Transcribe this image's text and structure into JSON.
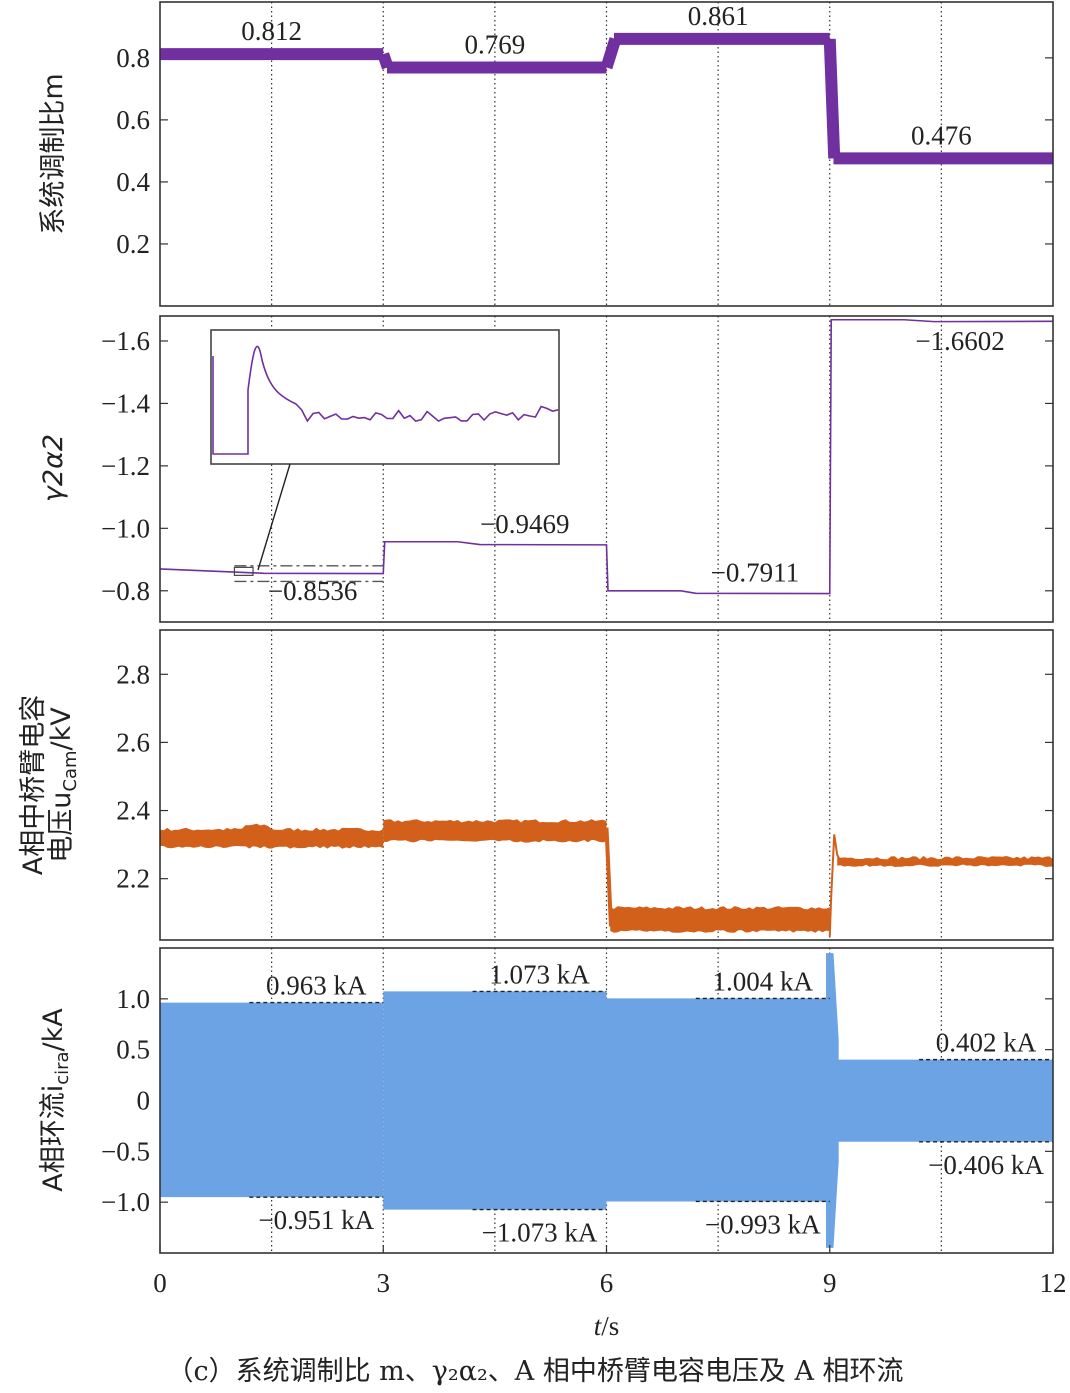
{
  "caption": "（c）系统调制比 m、γ₂α₂、A 相中桥臂电容电压及 A 相环流",
  "chart_data": [
    {
      "type": "line",
      "ylabel": "系统调制比m",
      "xlim": [
        0,
        12
      ],
      "ylim": [
        0.0,
        0.98
      ],
      "yticks": [
        "0.2",
        "0.4",
        "0.6",
        "0.8"
      ],
      "grid": "vertical-dotted",
      "color": "#7030a0",
      "series": [
        {
          "x": [
            0,
            3,
            3.1,
            6,
            6.1,
            9,
            9.05,
            12
          ],
          "values": [
            0.812,
            0.812,
            0.769,
            0.769,
            0.861,
            0.861,
            0.476,
            0.476
          ]
        }
      ],
      "labels": [
        "0.812",
        "0.769",
        "0.861",
        "0.476"
      ]
    },
    {
      "type": "line",
      "ylabel": "γ2α2",
      "xlim": [
        0,
        12
      ],
      "ylim": [
        -0.7,
        -1.68
      ],
      "yticks": [
        "−0.8",
        "−1.0",
        "−1.2",
        "−1.4",
        "−1.6"
      ],
      "grid": "vertical-dotted",
      "color": "#7030a0",
      "series": [
        {
          "x": [
            0,
            0.2,
            1,
            1.4,
            3,
            3.02,
            4,
            4.3,
            6,
            6.02,
            7,
            7.2,
            9,
            9.02,
            10,
            10.4,
            12
          ],
          "values": [
            -0.87,
            -0.868,
            -0.86,
            -0.856,
            -0.855,
            -0.957,
            -0.957,
            -0.948,
            -0.947,
            -0.8,
            -0.8,
            -0.792,
            -0.791,
            -1.668,
            -1.668,
            -1.662,
            -1.663
          ]
        }
      ],
      "labels": [
        "−0.8536",
        "−0.9469",
        "−0.7911",
        "−1.6602"
      ]
    },
    {
      "type": "area",
      "ylabel_line1": "A相中桥臂电容",
      "ylabel_line2": "电压u",
      "ylabel_sub": "Cam",
      "ylabel_unit": "/kV",
      "xlim": [
        0,
        12
      ],
      "ylim": [
        2.02,
        2.93
      ],
      "yticks": [
        "2.2",
        "2.4",
        "2.6",
        "2.8"
      ],
      "grid": "vertical-dotted",
      "color": "#d2601a",
      "series": [
        {
          "x": [
            0,
            3,
            3,
            6,
            6,
            9,
            9.1,
            12
          ],
          "upper": [
            2.35,
            2.35,
            2.37,
            2.37,
            2.11,
            2.11,
            2.26,
            2.26
          ],
          "lower": [
            2.29,
            2.29,
            2.31,
            2.31,
            2.04,
            2.05,
            2.24,
            2.24
          ]
        }
      ]
    },
    {
      "type": "area",
      "ylabel_main": "A相环流i",
      "ylabel_sub": "cira",
      "ylabel_unit": "/kA",
      "xlim": [
        0,
        12
      ],
      "ylim": [
        -1.5,
        1.5
      ],
      "yticks": [
        "−1.0",
        "−0.5",
        "0",
        "0.5",
        "1.0"
      ],
      "grid": "vertical-dotted",
      "color": "#6ba3e4",
      "series": [
        {
          "x": [
            0,
            3,
            3,
            6,
            6,
            9,
            9.1,
            12
          ],
          "upper": [
            0.963,
            0.963,
            1.073,
            1.073,
            1.004,
            1.004,
            0.402,
            0.402
          ],
          "lower": [
            -0.951,
            -0.951,
            -1.073,
            -1.073,
            -0.993,
            -0.993,
            -0.406,
            -0.406
          ]
        }
      ],
      "labels_upper": [
        "0.963 kA",
        "1.073 kA",
        "1.004 kA",
        "0.402 kA"
      ],
      "labels_lower": [
        "−0.951 kA",
        "−1.073 kA",
        "−0.993 kA",
        "−0.406 kA"
      ]
    }
  ],
  "xaxis": {
    "ticks": [
      "0",
      "3",
      "6",
      "9",
      "12"
    ],
    "label": "t",
    "unit": "/s"
  }
}
